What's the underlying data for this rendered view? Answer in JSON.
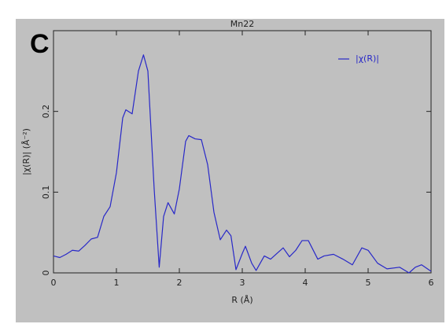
{
  "chart_data": {
    "type": "line",
    "panel_label": "C",
    "title": "Mn22",
    "x_label": "R (Å)",
    "y_label": "|χ(R)| (Å⁻²)",
    "x": [
      0,
      0.1,
      0.2,
      0.3,
      0.4,
      0.5,
      0.6,
      0.7,
      0.8,
      0.9,
      1.0,
      1.1,
      1.15,
      1.25,
      1.35,
      1.43,
      1.5,
      1.6,
      1.68,
      1.75,
      1.82,
      1.92,
      2.0,
      2.1,
      2.15,
      2.25,
      2.35,
      2.45,
      2.55,
      2.65,
      2.75,
      2.82,
      2.9,
      3.0,
      3.05,
      3.15,
      3.22,
      3.35,
      3.45,
      3.55,
      3.65,
      3.75,
      3.85,
      3.95,
      4.05,
      4.2,
      4.3,
      4.45,
      4.6,
      4.75,
      4.9,
      5.0,
      5.15,
      5.3,
      5.5,
      5.65,
      5.75,
      5.85,
      6.0
    ],
    "series": [
      {
        "name": "|χ(R)|",
        "color": "#2828c8",
        "values": [
          0.021,
          0.019,
          0.023,
          0.028,
          0.027,
          0.034,
          0.042,
          0.044,
          0.07,
          0.082,
          0.124,
          0.192,
          0.202,
          0.197,
          0.25,
          0.27,
          0.25,
          0.104,
          0.007,
          0.07,
          0.087,
          0.073,
          0.104,
          0.163,
          0.17,
          0.166,
          0.165,
          0.134,
          0.075,
          0.041,
          0.053,
          0.046,
          0.004,
          0.024,
          0.033,
          0.012,
          0.003,
          0.021,
          0.017,
          0.024,
          0.031,
          0.02,
          0.028,
          0.04,
          0.04,
          0.017,
          0.021,
          0.023,
          0.017,
          0.01,
          0.031,
          0.028,
          0.012,
          0.005,
          0.007,
          0.0,
          0.007,
          0.01,
          0.002
        ]
      }
    ],
    "xlim": [
      0,
      6
    ],
    "xticks": [
      0,
      1,
      2,
      3,
      4,
      5,
      6
    ],
    "ylim": [
      0,
      0.3
    ],
    "yticks": [
      0,
      0.1,
      0.2
    ],
    "legend": "upper right"
  }
}
